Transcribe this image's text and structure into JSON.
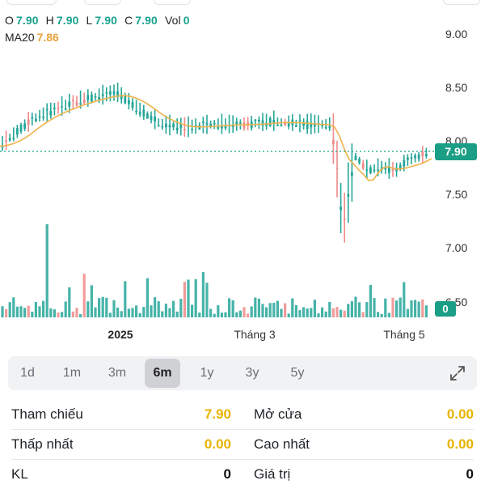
{
  "ohlc": {
    "open_label": "O",
    "open": "7.90",
    "high_label": "H",
    "high": "7.90",
    "low_label": "L",
    "low": "7.90",
    "close_label": "C",
    "close": "7.90",
    "vol_label": "Vol",
    "vol": "0"
  },
  "ma": {
    "label": "MA20",
    "value": "7.86"
  },
  "colors": {
    "up": "#26a69a",
    "down": "#ef8a8a",
    "ma": "#f0b24a",
    "badge": "#1b9e86"
  },
  "price_badge": "7.90",
  "volume_badge": "0",
  "chart_data": {
    "type": "candlestick",
    "y_ticks": [
      "9.00",
      "8.50",
      "8.00",
      "7.50",
      "7.00",
      "6.50"
    ],
    "y_range": [
      6.5,
      9.0
    ],
    "x_labels": [
      "2025",
      "Tháng 3",
      "Tháng 5"
    ],
    "last_price": 7.9,
    "ma20_last": 7.86
  },
  "ranges": [
    "1d",
    "1m",
    "3m",
    "6m",
    "1y",
    "3y",
    "5y"
  ],
  "active_range": "6m",
  "expand_icon": "expand-arrows-icon",
  "stats": {
    "row1": {
      "left_label": "Tham chiếu",
      "left_value": "7.90",
      "right_label": "Mở cửa",
      "right_value": "0.00"
    },
    "row2": {
      "left_label": "Thấp nhất",
      "left_value": "0.00",
      "right_label": "Cao nhất",
      "right_value": "0.00"
    },
    "row3": {
      "left_label": "KL",
      "left_value": "0",
      "right_label": "Giá trị",
      "right_value": "0"
    }
  }
}
